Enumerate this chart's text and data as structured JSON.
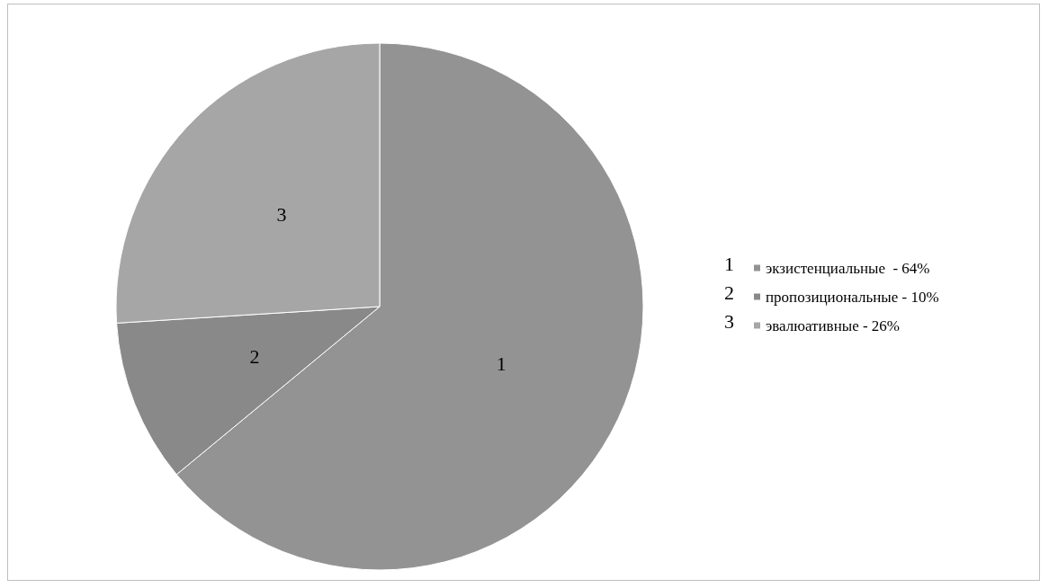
{
  "chart_data": {
    "type": "pie",
    "categories": [
      "экзистенциальные  - 64%",
      "пропозициональные - 10%",
      "эвалюативные - 26%"
    ],
    "values": [
      64,
      10,
      26
    ],
    "colors": [
      "#939393",
      "#898989",
      "#a6a6a6"
    ],
    "annotations": [
      {
        "text": "1",
        "x": "экзистенциальные  - 64%"
      },
      {
        "text": "2",
        "x": "пропозициональные - 10%"
      },
      {
        "text": "3",
        "x": "эвалюативные - 26%"
      }
    ],
    "legend": "right"
  }
}
